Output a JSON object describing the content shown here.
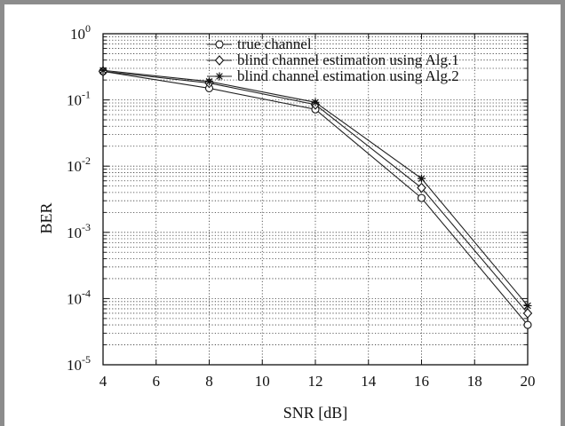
{
  "chart_data": {
    "type": "line",
    "title": "",
    "xlabel": "SNR [dB]",
    "ylabel": "BER",
    "x": [
      4,
      8,
      12,
      16,
      20
    ],
    "xlim": [
      4,
      20
    ],
    "ylim": [
      1e-05,
      1
    ],
    "yscale": "log",
    "grid": true,
    "legend_position": "top-right",
    "x_ticks": [
      "4",
      "6",
      "8",
      "10",
      "12",
      "14",
      "16",
      "18",
      "20"
    ],
    "y_ticks": [
      {
        "base": "10",
        "exp": "0"
      },
      {
        "base": "10",
        "exp": "-1"
      },
      {
        "base": "10",
        "exp": "-2"
      },
      {
        "base": "10",
        "exp": "-3"
      },
      {
        "base": "10",
        "exp": "-4"
      },
      {
        "base": "10",
        "exp": "-5"
      }
    ],
    "series": [
      {
        "name": "true channel",
        "marker": "circle",
        "values": [
          0.27,
          0.15,
          0.072,
          0.0033,
          4e-05
        ]
      },
      {
        "name": "blind channel estimation using Alg.1",
        "marker": "diamond",
        "values": [
          0.27,
          0.18,
          0.085,
          0.0047,
          6e-05
        ]
      },
      {
        "name": "blind channel estimation using Alg.2",
        "marker": "asterisk",
        "values": [
          0.28,
          0.19,
          0.092,
          0.0065,
          7.8e-05
        ]
      }
    ]
  }
}
